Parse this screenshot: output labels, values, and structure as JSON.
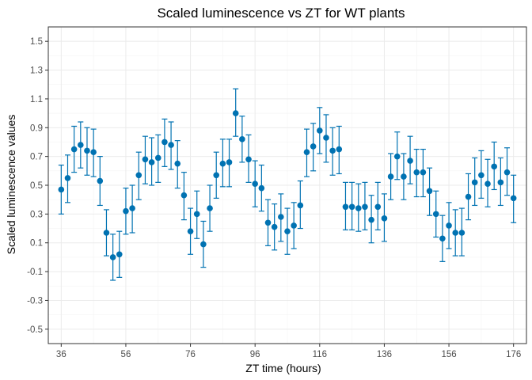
{
  "chart_data": {
    "type": "scatter",
    "title": "Scaled luminescence vs ZT for WT plants",
    "xlabel": "ZT time (hours)",
    "ylabel": "Scaled luminescence values",
    "xlim": [
      32,
      180
    ],
    "ylim": [
      -0.6,
      1.6
    ],
    "xticks": [
      36,
      56,
      76,
      96,
      116,
      136,
      156,
      176
    ],
    "yticks": [
      -0.5,
      -0.3,
      -0.1,
      0.1,
      0.3,
      0.5,
      0.7,
      0.9,
      1.1,
      1.3,
      1.5
    ],
    "xtick_labels": [
      "36",
      "56",
      "76",
      "96",
      "116",
      "136",
      "156",
      "176"
    ],
    "ytick_labels": [
      "-0.5",
      "-0.3",
      "-0.1",
      "0.1",
      "0.3",
      "0.5",
      "0.7",
      "0.9",
      "1.1",
      "1.3",
      "1.5"
    ],
    "grid": true,
    "error_bars": true,
    "point_color": "#0072B2",
    "points": [
      {
        "x": 36,
        "y": 0.47,
        "lo": 0.3,
        "hi": 0.64
      },
      {
        "x": 38,
        "y": 0.55,
        "lo": 0.38,
        "hi": 0.71
      },
      {
        "x": 40,
        "y": 0.75,
        "lo": 0.59,
        "hi": 0.91
      },
      {
        "x": 42,
        "y": 0.78,
        "lo": 0.62,
        "hi": 0.94
      },
      {
        "x": 44,
        "y": 0.74,
        "lo": 0.57,
        "hi": 0.9
      },
      {
        "x": 46,
        "y": 0.73,
        "lo": 0.56,
        "hi": 0.89
      },
      {
        "x": 48,
        "y": 0.53,
        "lo": 0.36,
        "hi": 0.7
      },
      {
        "x": 50,
        "y": 0.17,
        "lo": 0.01,
        "hi": 0.33
      },
      {
        "x": 52,
        "y": 0.0,
        "lo": -0.16,
        "hi": 0.16
      },
      {
        "x": 54,
        "y": 0.02,
        "lo": -0.14,
        "hi": 0.18
      },
      {
        "x": 56,
        "y": 0.32,
        "lo": 0.16,
        "hi": 0.48
      },
      {
        "x": 58,
        "y": 0.34,
        "lo": 0.17,
        "hi": 0.5
      },
      {
        "x": 60,
        "y": 0.57,
        "lo": 0.4,
        "hi": 0.73
      },
      {
        "x": 62,
        "y": 0.68,
        "lo": 0.51,
        "hi": 0.84
      },
      {
        "x": 64,
        "y": 0.66,
        "lo": 0.5,
        "hi": 0.83
      },
      {
        "x": 66,
        "y": 0.69,
        "lo": 0.52,
        "hi": 0.85
      },
      {
        "x": 68,
        "y": 0.8,
        "lo": 0.63,
        "hi": 0.96
      },
      {
        "x": 70,
        "y": 0.78,
        "lo": 0.61,
        "hi": 0.94
      },
      {
        "x": 72,
        "y": 0.65,
        "lo": 0.48,
        "hi": 0.81
      },
      {
        "x": 74,
        "y": 0.43,
        "lo": 0.26,
        "hi": 0.59
      },
      {
        "x": 76,
        "y": 0.18,
        "lo": 0.02,
        "hi": 0.34
      },
      {
        "x": 78,
        "y": 0.3,
        "lo": 0.13,
        "hi": 0.46
      },
      {
        "x": 80,
        "y": 0.09,
        "lo": -0.07,
        "hi": 0.25
      },
      {
        "x": 82,
        "y": 0.34,
        "lo": 0.18,
        "hi": 0.5
      },
      {
        "x": 84,
        "y": 0.57,
        "lo": 0.41,
        "hi": 0.73
      },
      {
        "x": 86,
        "y": 0.65,
        "lo": 0.49,
        "hi": 0.82
      },
      {
        "x": 88,
        "y": 0.66,
        "lo": 0.49,
        "hi": 0.82
      },
      {
        "x": 90,
        "y": 1.0,
        "lo": 0.84,
        "hi": 1.17
      },
      {
        "x": 92,
        "y": 0.82,
        "lo": 0.66,
        "hi": 0.98
      },
      {
        "x": 94,
        "y": 0.68,
        "lo": 0.52,
        "hi": 0.85
      },
      {
        "x": 96,
        "y": 0.51,
        "lo": 0.35,
        "hi": 0.67
      },
      {
        "x": 98,
        "y": 0.48,
        "lo": 0.32,
        "hi": 0.64
      },
      {
        "x": 100,
        "y": 0.24,
        "lo": 0.08,
        "hi": 0.4
      },
      {
        "x": 102,
        "y": 0.21,
        "lo": 0.05,
        "hi": 0.37
      },
      {
        "x": 104,
        "y": 0.28,
        "lo": 0.11,
        "hi": 0.44
      },
      {
        "x": 106,
        "y": 0.18,
        "lo": 0.02,
        "hi": 0.34
      },
      {
        "x": 108,
        "y": 0.22,
        "lo": 0.06,
        "hi": 0.38
      },
      {
        "x": 110,
        "y": 0.36,
        "lo": 0.2,
        "hi": 0.53
      },
      {
        "x": 112,
        "y": 0.73,
        "lo": 0.56,
        "hi": 0.89
      },
      {
        "x": 114,
        "y": 0.77,
        "lo": 0.6,
        "hi": 0.93
      },
      {
        "x": 116,
        "y": 0.88,
        "lo": 0.72,
        "hi": 1.04
      },
      {
        "x": 118,
        "y": 0.83,
        "lo": 0.66,
        "hi": 0.99
      },
      {
        "x": 120,
        "y": 0.74,
        "lo": 0.57,
        "hi": 0.9
      },
      {
        "x": 122,
        "y": 0.75,
        "lo": 0.58,
        "hi": 0.91
      },
      {
        "x": 124,
        "y": 0.35,
        "lo": 0.19,
        "hi": 0.52
      },
      {
        "x": 126,
        "y": 0.35,
        "lo": 0.19,
        "hi": 0.52
      },
      {
        "x": 128,
        "y": 0.34,
        "lo": 0.18,
        "hi": 0.51
      },
      {
        "x": 130,
        "y": 0.35,
        "lo": 0.19,
        "hi": 0.52
      },
      {
        "x": 132,
        "y": 0.26,
        "lo": 0.1,
        "hi": 0.43
      },
      {
        "x": 134,
        "y": 0.35,
        "lo": 0.19,
        "hi": 0.52
      },
      {
        "x": 136,
        "y": 0.27,
        "lo": 0.11,
        "hi": 0.44
      },
      {
        "x": 138,
        "y": 0.56,
        "lo": 0.4,
        "hi": 0.72
      },
      {
        "x": 140,
        "y": 0.7,
        "lo": 0.54,
        "hi": 0.87
      },
      {
        "x": 142,
        "y": 0.56,
        "lo": 0.4,
        "hi": 0.72
      },
      {
        "x": 144,
        "y": 0.67,
        "lo": 0.51,
        "hi": 0.84
      },
      {
        "x": 146,
        "y": 0.59,
        "lo": 0.42,
        "hi": 0.75
      },
      {
        "x": 148,
        "y": 0.59,
        "lo": 0.42,
        "hi": 0.75
      },
      {
        "x": 150,
        "y": 0.46,
        "lo": 0.29,
        "hi": 0.62
      },
      {
        "x": 152,
        "y": 0.3,
        "lo": 0.14,
        "hi": 0.46
      },
      {
        "x": 154,
        "y": 0.13,
        "lo": -0.03,
        "hi": 0.29
      },
      {
        "x": 156,
        "y": 0.22,
        "lo": 0.06,
        "hi": 0.38
      },
      {
        "x": 158,
        "y": 0.17,
        "lo": 0.01,
        "hi": 0.33
      },
      {
        "x": 160,
        "y": 0.17,
        "lo": 0.01,
        "hi": 0.34
      },
      {
        "x": 162,
        "y": 0.42,
        "lo": 0.26,
        "hi": 0.58
      },
      {
        "x": 164,
        "y": 0.52,
        "lo": 0.36,
        "hi": 0.69
      },
      {
        "x": 166,
        "y": 0.57,
        "lo": 0.41,
        "hi": 0.74
      },
      {
        "x": 168,
        "y": 0.51,
        "lo": 0.35,
        "hi": 0.68
      },
      {
        "x": 170,
        "y": 0.63,
        "lo": 0.47,
        "hi": 0.8
      },
      {
        "x": 172,
        "y": 0.52,
        "lo": 0.36,
        "hi": 0.69
      },
      {
        "x": 174,
        "y": 0.59,
        "lo": 0.43,
        "hi": 0.76
      },
      {
        "x": 176,
        "y": 0.41,
        "lo": 0.24,
        "hi": 0.57
      }
    ]
  }
}
